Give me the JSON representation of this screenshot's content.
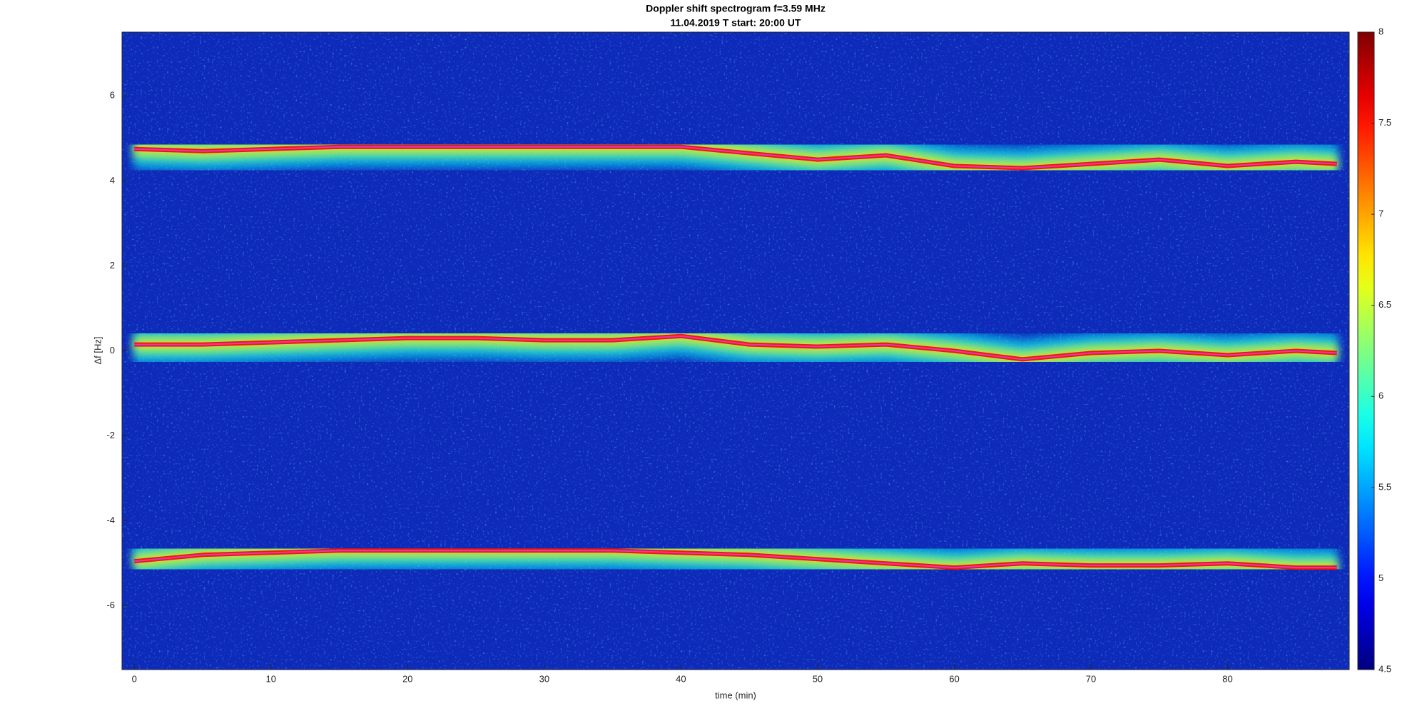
{
  "chart_data": {
    "type": "spectrogram",
    "title": "Doppler shift spectrogram f=3.59 MHz",
    "subtitle": "11.04.2019    T start: 20:00 UT",
    "x_label": "time (min)",
    "y_label": "Δf [Hz]",
    "xlim": [
      -0.9,
      88.9
    ],
    "ylim": [
      -7.5,
      7.5
    ],
    "xticks": [
      0,
      10,
      20,
      30,
      40,
      50,
      60,
      70,
      80
    ],
    "yticks": [
      -6,
      -4,
      -2,
      0,
      2,
      4,
      6
    ],
    "colormap": "jet",
    "clim": [
      4.5,
      8
    ],
    "cticks": [
      4.5,
      5,
      5.5,
      6,
      6.5,
      7,
      7.5,
      8
    ],
    "x": [
      0,
      5,
      10,
      15,
      20,
      25,
      30,
      35,
      40,
      45,
      50,
      55,
      60,
      65,
      70,
      75,
      80,
      85,
      88
    ],
    "series": [
      {
        "values": [
          4.75,
          4.7,
          4.75,
          4.8,
          4.8,
          4.8,
          4.8,
          4.8,
          4.8,
          4.65,
          4.5,
          4.6,
          4.35,
          4.3,
          4.4,
          4.5,
          4.35,
          4.45,
          4.4
        ]
      },
      {
        "values": [
          0.15,
          0.15,
          0.2,
          0.25,
          0.3,
          0.3,
          0.25,
          0.25,
          0.35,
          0.15,
          0.1,
          0.15,
          0,
          -0.2,
          -0.05,
          0,
          -0.1,
          0,
          -0.05
        ]
      },
      {
        "values": [
          -4.95,
          -4.8,
          -4.75,
          -4.7,
          -4.7,
          -4.7,
          -4.7,
          -4.7,
          -4.75,
          -4.8,
          -4.9,
          -5.0,
          -5.1,
          -5.0,
          -5.05,
          -5.05,
          -5.0,
          -5.1,
          -5.1
        ]
      }
    ]
  }
}
